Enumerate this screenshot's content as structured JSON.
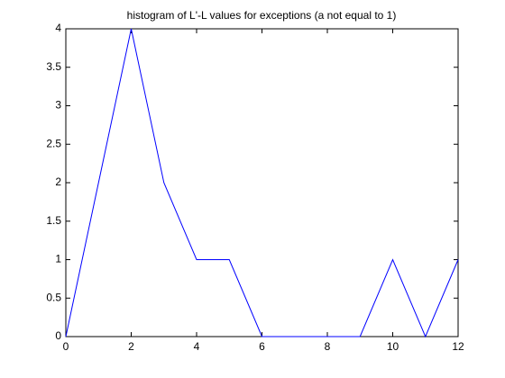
{
  "chart_data": {
    "type": "line",
    "title": "histogram of L'-L values for exceptions (a not equal to 1)",
    "x": [
      0,
      1,
      2,
      3,
      4,
      5,
      6,
      7,
      8,
      9,
      10,
      11,
      12
    ],
    "series": [
      {
        "color": "#0000ff",
        "values": [
          0,
          2,
          4,
          2,
          1,
          1,
          0,
          0,
          0,
          0,
          1,
          0,
          1
        ]
      }
    ],
    "xlim": [
      0,
      12
    ],
    "xticks": [
      0,
      2,
      4,
      6,
      8,
      10,
      12
    ],
    "ylim": [
      0,
      4
    ],
    "yticks": [
      0,
      0.5,
      1,
      1.5,
      2,
      2.5,
      3,
      3.5,
      4
    ],
    "grid": false
  }
}
